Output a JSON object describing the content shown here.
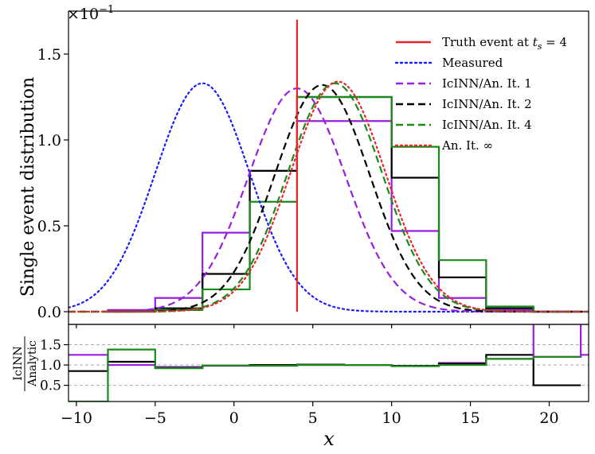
{
  "chart_data": [
    {
      "type": "line",
      "xlabel": "x",
      "ylabel": "Single event distribution",
      "y_scale_label": "×10",
      "y_scale_exponent": "−1",
      "xlim": [
        -10.5,
        22.5
      ],
      "ylim": [
        0,
        1.75
      ],
      "x_ticks": [
        -10,
        -5,
        0,
        5,
        10,
        15,
        20
      ],
      "x_tick_labels": [
        "−10",
        "−5",
        "0",
        "5",
        "10",
        "15",
        "20"
      ],
      "y_ticks": [
        0.0,
        0.5,
        1.0,
        1.5
      ],
      "y_tick_labels": [
        "0.0",
        "0.5",
        "1.0",
        "1.5"
      ],
      "legend_position": "top-right",
      "truth_line": {
        "name": "Truth event at t_s = 4",
        "legend_label_prefix": "Truth event at ",
        "legend_label_math": "t",
        "legend_label_sub": "s",
        "legend_label_suffix": " = 4",
        "x": 4,
        "y_top": 1.7,
        "color": "#e8262b"
      },
      "curves": [
        {
          "name": "Measured",
          "style": "dotted",
          "color": "#1a1aff",
          "mean": -2.0,
          "sigma": 3.0,
          "peak": 1.33
        },
        {
          "name": "IcINN/An. It. 1",
          "style": "dashed",
          "color": "#9a1ee0",
          "mean": 4.0,
          "sigma": 3.08,
          "peak": 1.3
        },
        {
          "name": "IcINN/An. It. 2",
          "style": "dashed",
          "color": "#000000",
          "mean": 5.6,
          "sigma": 3.0,
          "peak": 1.32
        },
        {
          "name": "IcINN/An. It. 4",
          "style": "dashed",
          "color": "#1a8a1a",
          "mean": 6.4,
          "sigma": 3.0,
          "peak": 1.33
        },
        {
          "name": "An. It. ∞",
          "style": "dotted",
          "color": "#e8262b",
          "mean": 6.6,
          "sigma": 3.0,
          "peak": 1.34
        }
      ],
      "histograms": [
        {
          "name": "IcINN/An. It. 1",
          "color": "#9a1ee0",
          "edges": [
            -8,
            -5,
            -2,
            1,
            4,
            7,
            10,
            13,
            16,
            19,
            22
          ],
          "values": [
            0.01,
            0.08,
            0.46,
            0.82,
            1.11,
            1.11,
            0.47,
            0.08,
            0.01,
            0.0
          ]
        },
        {
          "name": "IcINN/An. It. 2",
          "color": "#000000",
          "edges": [
            -8,
            -5,
            -2,
            1,
            4,
            7,
            10,
            13,
            16,
            19,
            22
          ],
          "values": [
            0.0,
            0.02,
            0.22,
            0.82,
            1.25,
            1.25,
            0.78,
            0.2,
            0.02,
            0.0
          ]
        },
        {
          "name": "IcINN/An. It. 4",
          "color": "#1a8a1a",
          "edges": [
            -8,
            -5,
            -2,
            1,
            4,
            7,
            10,
            13,
            16,
            19,
            22
          ],
          "values": [
            0.0,
            0.01,
            0.13,
            0.64,
            1.25,
            1.25,
            0.96,
            0.3,
            0.03,
            0.0
          ]
        }
      ]
    },
    {
      "type": "line",
      "ylabel_top": "IcINN",
      "ylabel_bottom": "Analytic",
      "xlabel": "x",
      "xlim": [
        -10.5,
        22.5
      ],
      "ylim": [
        0.1,
        2.0
      ],
      "y_ticks": [
        0.5,
        1.0,
        1.5
      ],
      "y_tick_labels": [
        "0.5",
        "1.0",
        "1.5"
      ],
      "x_ticks": [
        -10,
        -5,
        0,
        5,
        10,
        15,
        20
      ],
      "x_tick_labels": [
        "−10",
        "−5",
        "0",
        "5",
        "10",
        "15",
        "20"
      ],
      "grid_lines": [
        0.5,
        1.0,
        1.5
      ],
      "ratios": [
        {
          "name": "IcINN/An. It. 1",
          "color": "#9a1ee0",
          "edges": [
            -10.5,
            -8,
            -5,
            -2,
            1,
            4,
            7,
            10,
            13,
            16,
            19,
            22,
            22.5
          ],
          "values": [
            1.25,
            1.0,
            0.95,
            0.98,
            1.0,
            1.0,
            1.0,
            0.98,
            1.05,
            1.15,
            1.2,
            1.25
          ]
        },
        {
          "name": "IcINN/An. It. 2",
          "color": "#000000",
          "edges": [
            -10.5,
            -8,
            -5,
            -2,
            1,
            4,
            7,
            10,
            13,
            16,
            19,
            22
          ],
          "values": [
            0.85,
            1.08,
            0.93,
            0.99,
            1.0,
            1.01,
            1.0,
            0.98,
            1.03,
            1.25,
            0.5
          ]
        },
        {
          "name": "IcINN/An. It. 4",
          "color": "#1a8a1a",
          "edges": [
            -10.5,
            -8,
            -5,
            -2,
            1,
            4,
            7,
            10,
            13,
            16,
            19,
            22
          ],
          "values": [
            0.1,
            1.38,
            0.92,
            0.99,
            0.98,
            1.0,
            1.0,
            0.97,
            1.0,
            1.15,
            1.2
          ]
        }
      ],
      "spikes": [
        {
          "color": "#9a1ee0",
          "x": 19
        },
        {
          "color": "#9a1ee0",
          "x": 22
        }
      ]
    }
  ]
}
